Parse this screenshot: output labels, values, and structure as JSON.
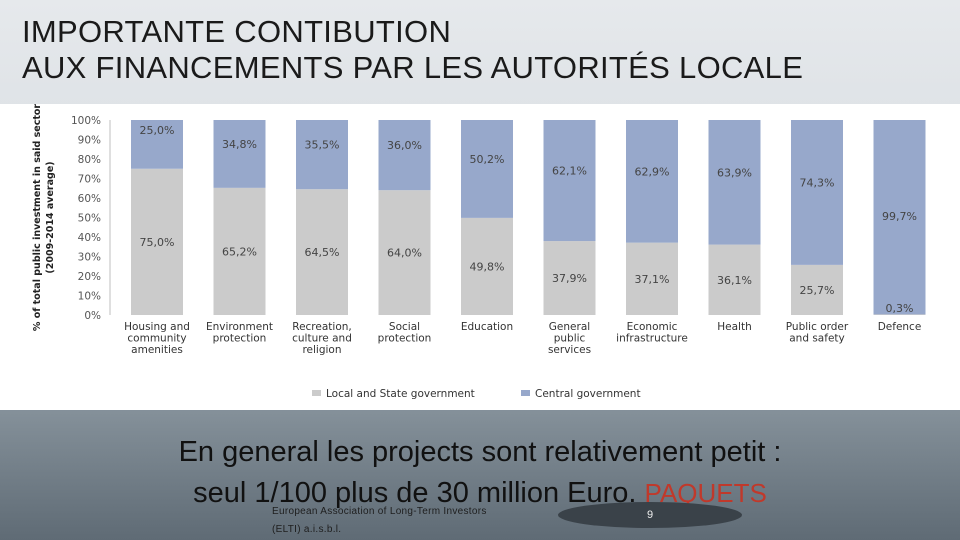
{
  "slide": {
    "title_line1": "IMPORTANTE CONTIBUTION",
    "title_line2": "AUX FINANCEMENTS PAR LES AUTORITÉS LOCALE",
    "body_line1": "En general les projects sont relativement petit :",
    "body_line2": "seul 1/100 plus de  30 million Euro.",
    "body_highlight": "PAQUETS",
    "footer_line1": "European Association of Long-Term Investors",
    "footer_line2": "(ELTI) a.i.s.b.l.",
    "page_number": "9",
    "highlight_color": "#c0392b"
  },
  "chart_data": {
    "type": "bar",
    "stacked": true,
    "ylabel_line1": "% of total public investment in said sector",
    "ylabel_line2": "(2009-2014 average)",
    "ylim": [
      0,
      100
    ],
    "yticks": [
      "0%",
      "10%",
      "20%",
      "30%",
      "40%",
      "50%",
      "60%",
      "70%",
      "80%",
      "90%",
      "100%"
    ],
    "categories": [
      [
        "Housing and",
        "community",
        "amenities"
      ],
      [
        "Environment",
        "protection"
      ],
      [
        "Recreation,",
        "culture and",
        "religion"
      ],
      [
        "Social",
        "protection"
      ],
      [
        "Education"
      ],
      [
        "General",
        "public",
        "services"
      ],
      [
        "Economic",
        "infrastructure"
      ],
      [
        "Health"
      ],
      [
        "Public order",
        "and safety"
      ],
      [
        "Defence"
      ]
    ],
    "series": [
      {
        "name": "Local and State government",
        "color": "#cbcbcb",
        "values": [
          75.0,
          65.2,
          64.5,
          64.0,
          49.8,
          37.9,
          37.1,
          36.1,
          25.7,
          0.3
        ],
        "labels": [
          "75,0%",
          "65,2%",
          "64,5%",
          "64,0%",
          "49,8%",
          "37,9%",
          "37,1%",
          "36,1%",
          "25,7%",
          "0,3%"
        ]
      },
      {
        "name": "Central government",
        "color": "#97a8cb",
        "values": [
          25.0,
          34.8,
          35.5,
          36.0,
          50.2,
          62.1,
          62.9,
          63.9,
          74.3,
          99.7
        ],
        "labels": [
          "25,0%",
          "34,8%",
          "35,5%",
          "36,0%",
          "50,2%",
          "62,1%",
          "62,9%",
          "63,9%",
          "74,3%",
          "99,7%"
        ]
      }
    ],
    "legend_position": "bottom"
  }
}
